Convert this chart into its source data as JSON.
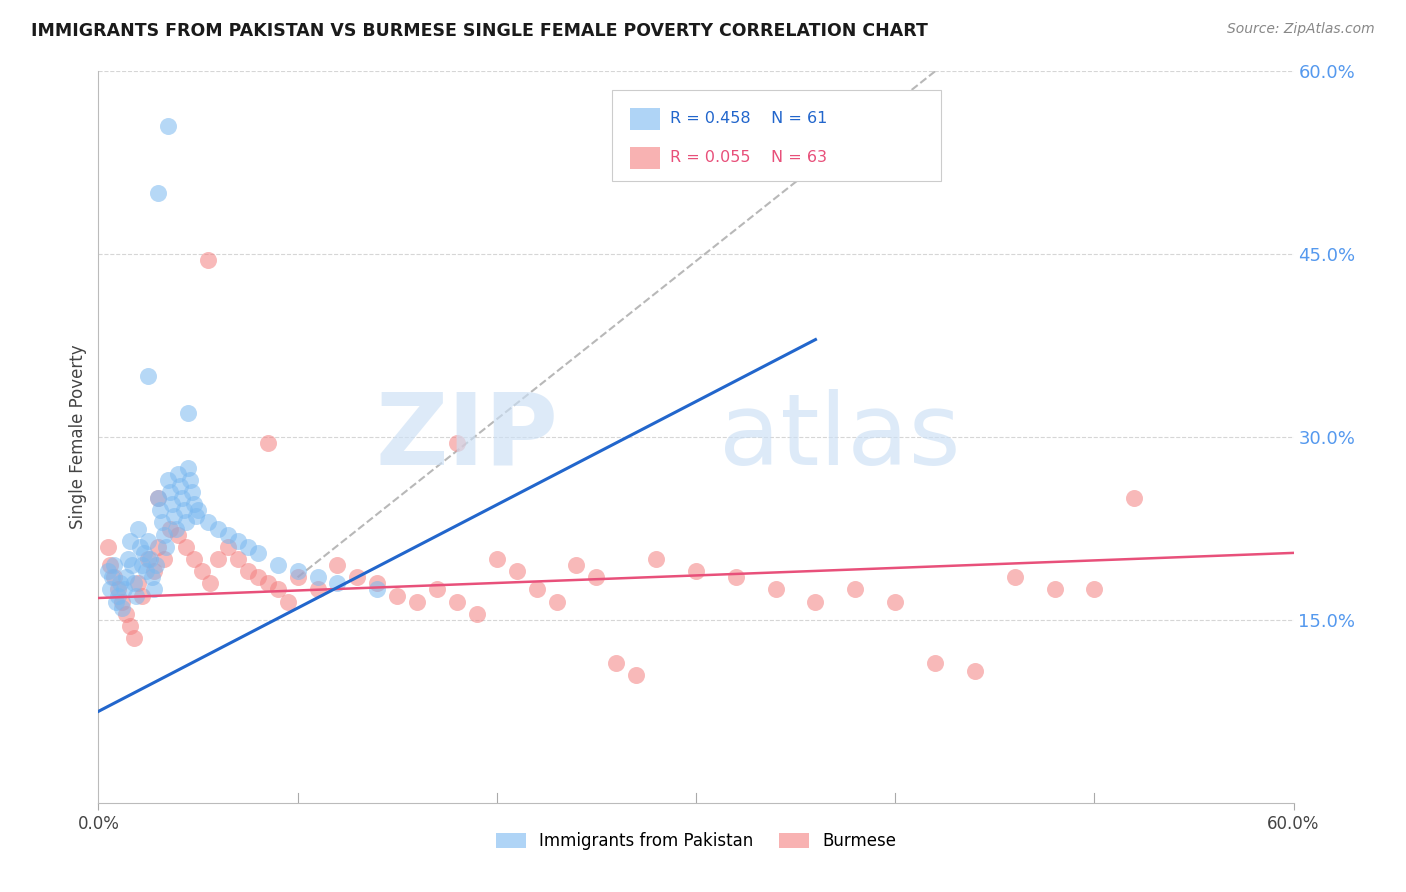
{
  "title": "IMMIGRANTS FROM PAKISTAN VS BURMESE SINGLE FEMALE POVERTY CORRELATION CHART",
  "source": "Source: ZipAtlas.com",
  "ylabel": "Single Female Poverty",
  "right_yticks": [
    "60.0%",
    "45.0%",
    "30.0%",
    "15.0%"
  ],
  "right_ytick_vals": [
    0.6,
    0.45,
    0.3,
    0.15
  ],
  "xlim": [
    0.0,
    0.6
  ],
  "ylim": [
    0.0,
    0.6
  ],
  "pakistan_color": "#7ab8f0",
  "burmese_color": "#f48080",
  "pakistan_line_color": "#2266cc",
  "burmese_line_color": "#e8507a",
  "dash_color": "#b8b8b8",
  "background_color": "#ffffff",
  "grid_color": "#cccccc",
  "pakistan_line_x0": 0.0,
  "pakistan_line_y0": 0.075,
  "pakistan_line_x1": 0.36,
  "pakistan_line_y1": 0.38,
  "dash_line_x0": 0.1,
  "dash_line_y0": 0.185,
  "dash_line_x1": 0.42,
  "dash_line_y1": 0.6,
  "burmese_line_x0": 0.0,
  "burmese_line_y0": 0.168,
  "burmese_line_x1": 0.6,
  "burmese_line_y1": 0.205,
  "pak_x": [
    0.005,
    0.006,
    0.007,
    0.008,
    0.009,
    0.01,
    0.011,
    0.012,
    0.013,
    0.014,
    0.015,
    0.016,
    0.017,
    0.018,
    0.019,
    0.02,
    0.021,
    0.022,
    0.023,
    0.024,
    0.025,
    0.026,
    0.027,
    0.028,
    0.029,
    0.03,
    0.031,
    0.032,
    0.033,
    0.034,
    0.035,
    0.036,
    0.037,
    0.038,
    0.039,
    0.04,
    0.041,
    0.042,
    0.043,
    0.044,
    0.045,
    0.046,
    0.047,
    0.048,
    0.049,
    0.05,
    0.055,
    0.06,
    0.065,
    0.07,
    0.075,
    0.08,
    0.09,
    0.1,
    0.11,
    0.12,
    0.14,
    0.03,
    0.035,
    0.025,
    0.045
  ],
  "pak_y": [
    0.19,
    0.175,
    0.185,
    0.195,
    0.165,
    0.17,
    0.18,
    0.16,
    0.175,
    0.185,
    0.2,
    0.215,
    0.195,
    0.18,
    0.17,
    0.225,
    0.21,
    0.195,
    0.205,
    0.19,
    0.215,
    0.2,
    0.185,
    0.175,
    0.195,
    0.25,
    0.24,
    0.23,
    0.22,
    0.21,
    0.265,
    0.255,
    0.245,
    0.235,
    0.225,
    0.27,
    0.26,
    0.25,
    0.24,
    0.23,
    0.275,
    0.265,
    0.255,
    0.245,
    0.235,
    0.24,
    0.23,
    0.225,
    0.22,
    0.215,
    0.21,
    0.205,
    0.195,
    0.19,
    0.185,
    0.18,
    0.175,
    0.5,
    0.555,
    0.35,
    0.32
  ],
  "bur_x": [
    0.005,
    0.006,
    0.008,
    0.01,
    0.012,
    0.014,
    0.016,
    0.018,
    0.02,
    0.022,
    0.025,
    0.028,
    0.03,
    0.033,
    0.036,
    0.04,
    0.044,
    0.048,
    0.052,
    0.056,
    0.06,
    0.065,
    0.07,
    0.075,
    0.08,
    0.085,
    0.09,
    0.095,
    0.1,
    0.11,
    0.12,
    0.13,
    0.14,
    0.15,
    0.16,
    0.17,
    0.18,
    0.19,
    0.2,
    0.21,
    0.22,
    0.23,
    0.24,
    0.25,
    0.26,
    0.27,
    0.28,
    0.3,
    0.32,
    0.34,
    0.36,
    0.38,
    0.4,
    0.42,
    0.44,
    0.46,
    0.48,
    0.5,
    0.52,
    0.03,
    0.055,
    0.085,
    0.18
  ],
  "bur_y": [
    0.21,
    0.195,
    0.185,
    0.175,
    0.165,
    0.155,
    0.145,
    0.135,
    0.18,
    0.17,
    0.2,
    0.19,
    0.21,
    0.2,
    0.225,
    0.22,
    0.21,
    0.2,
    0.19,
    0.18,
    0.2,
    0.21,
    0.2,
    0.19,
    0.185,
    0.18,
    0.175,
    0.165,
    0.185,
    0.175,
    0.195,
    0.185,
    0.18,
    0.17,
    0.165,
    0.175,
    0.165,
    0.155,
    0.2,
    0.19,
    0.175,
    0.165,
    0.195,
    0.185,
    0.115,
    0.105,
    0.2,
    0.19,
    0.185,
    0.175,
    0.165,
    0.175,
    0.165,
    0.115,
    0.108,
    0.185,
    0.175,
    0.175,
    0.25,
    0.25,
    0.445,
    0.295,
    0.295
  ]
}
